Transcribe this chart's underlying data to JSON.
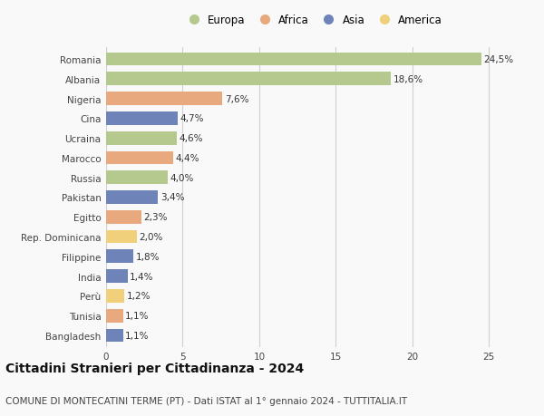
{
  "categories": [
    "Romania",
    "Albania",
    "Nigeria",
    "Cina",
    "Ucraina",
    "Marocco",
    "Russia",
    "Pakistan",
    "Egitto",
    "Rep. Dominicana",
    "Filippine",
    "India",
    "Perù",
    "Tunisia",
    "Bangladesh"
  ],
  "values": [
    24.5,
    18.6,
    7.6,
    4.7,
    4.6,
    4.4,
    4.0,
    3.4,
    2.3,
    2.0,
    1.8,
    1.4,
    1.2,
    1.1,
    1.1
  ],
  "labels": [
    "24,5%",
    "18,6%",
    "7,6%",
    "4,7%",
    "4,6%",
    "4,4%",
    "4,0%",
    "3,4%",
    "2,3%",
    "2,0%",
    "1,8%",
    "1,4%",
    "1,2%",
    "1,1%",
    "1,1%"
  ],
  "colors": [
    "#b5c98e",
    "#b5c98e",
    "#e8a97e",
    "#6e84b8",
    "#b5c98e",
    "#e8a97e",
    "#b5c98e",
    "#6e84b8",
    "#e8a97e",
    "#f0d07a",
    "#6e84b8",
    "#6e84b8",
    "#f0d07a",
    "#e8a97e",
    "#6e84b8"
  ],
  "legend": {
    "Europa": "#b5c98e",
    "Africa": "#e8a97e",
    "Asia": "#6e84b8",
    "America": "#f0d07a"
  },
  "xlim": [
    0,
    27
  ],
  "xticks": [
    0,
    5,
    10,
    15,
    20,
    25
  ],
  "title": "Cittadini Stranieri per Cittadinanza - 2024",
  "subtitle": "COMUNE DI MONTECATINI TERME (PT) - Dati ISTAT al 1° gennaio 2024 - TUTTITALIA.IT",
  "background_color": "#f9f9f9",
  "grid_color": "#d0d0d0",
  "bar_height": 0.68,
  "label_fontsize": 7.5,
  "tick_fontsize": 7.5,
  "title_fontsize": 10,
  "subtitle_fontsize": 7.5,
  "legend_fontsize": 8.5
}
